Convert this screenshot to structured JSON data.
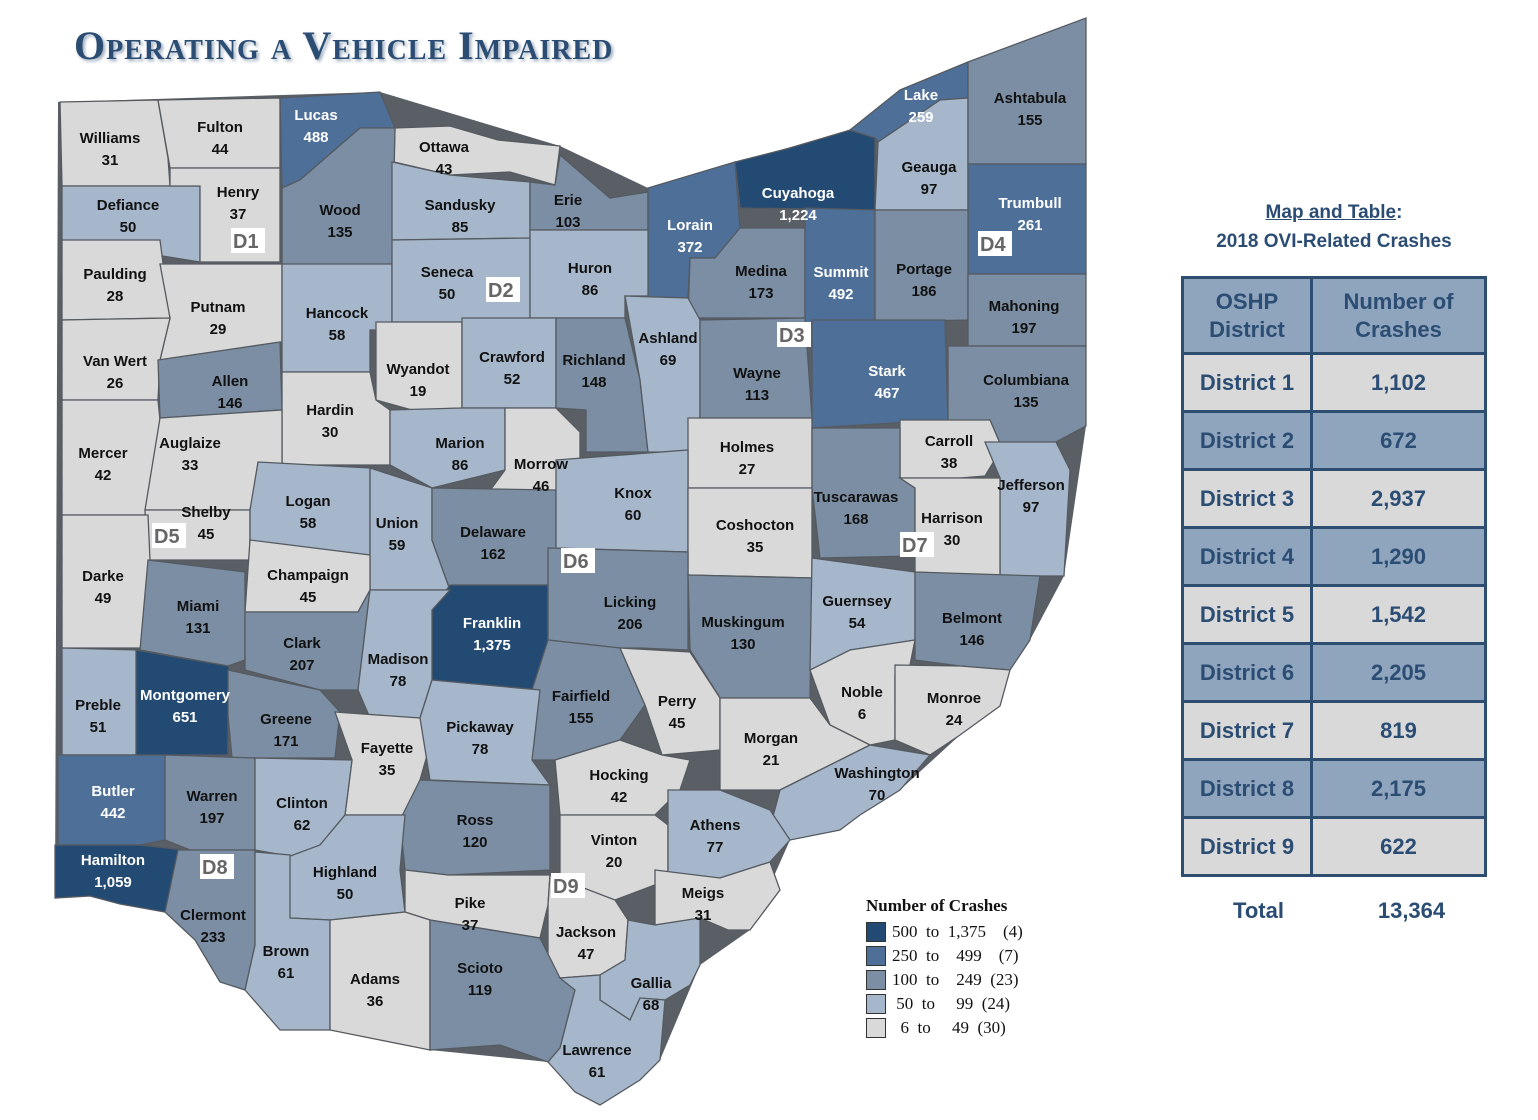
{
  "title": "Operating a Vehicle Impaired",
  "colors": {
    "bin1": "#234a72",
    "bin2": "#4e6f97",
    "bin3": "#7b8ea4",
    "bin4": "#a6b7cb",
    "bin5": "#d9d9d9"
  },
  "counties": [
    {
      "name": "Williams",
      "value": "31",
      "bin": 5
    },
    {
      "name": "Fulton",
      "value": "44",
      "bin": 5
    },
    {
      "name": "Lucas",
      "value": "488",
      "bin": 2
    },
    {
      "name": "Ottawa",
      "value": "43",
      "bin": 5
    },
    {
      "name": "Defiance",
      "value": "50",
      "bin": 4
    },
    {
      "name": "Henry",
      "value": "37",
      "bin": 5
    },
    {
      "name": "Wood",
      "value": "135",
      "bin": 3
    },
    {
      "name": "Sandusky",
      "value": "85",
      "bin": 4
    },
    {
      "name": "Erie",
      "value": "103",
      "bin": 3
    },
    {
      "name": "Lorain",
      "value": "372",
      "bin": 2
    },
    {
      "name": "Cuyahoga",
      "value": "1,224",
      "bin": 1
    },
    {
      "name": "Lake",
      "value": "259",
      "bin": 2
    },
    {
      "name": "Geauga",
      "value": "97",
      "bin": 4
    },
    {
      "name": "Ashtabula",
      "value": "155",
      "bin": 3
    },
    {
      "name": "Trumbull",
      "value": "261",
      "bin": 2
    },
    {
      "name": "Paulding",
      "value": "28",
      "bin": 5
    },
    {
      "name": "Putnam",
      "value": "29",
      "bin": 5
    },
    {
      "name": "Hancock",
      "value": "58",
      "bin": 4
    },
    {
      "name": "Seneca",
      "value": "50",
      "bin": 4
    },
    {
      "name": "Huron",
      "value": "86",
      "bin": 4
    },
    {
      "name": "Medina",
      "value": "173",
      "bin": 3
    },
    {
      "name": "Summit",
      "value": "492",
      "bin": 2
    },
    {
      "name": "Portage",
      "value": "186",
      "bin": 3
    },
    {
      "name": "Mahoning",
      "value": "197",
      "bin": 3
    },
    {
      "name": "Van Wert",
      "value": "26",
      "bin": 5
    },
    {
      "name": "Allen",
      "value": "146",
      "bin": 3
    },
    {
      "name": "Wyandot",
      "value": "19",
      "bin": 5
    },
    {
      "name": "Crawford",
      "value": "52",
      "bin": 4
    },
    {
      "name": "Richland",
      "value": "148",
      "bin": 3
    },
    {
      "name": "Ashland",
      "value": "69",
      "bin": 4
    },
    {
      "name": "Wayne",
      "value": "113",
      "bin": 3
    },
    {
      "name": "Stark",
      "value": "467",
      "bin": 2
    },
    {
      "name": "Columbiana",
      "value": "135",
      "bin": 3
    },
    {
      "name": "Hardin",
      "value": "30",
      "bin": 5
    },
    {
      "name": "Mercer",
      "value": "42",
      "bin": 5
    },
    {
      "name": "Auglaize",
      "value": "33",
      "bin": 5
    },
    {
      "name": "Marion",
      "value": "86",
      "bin": 4
    },
    {
      "name": "Morrow",
      "value": "46",
      "bin": 5
    },
    {
      "name": "Holmes",
      "value": "27",
      "bin": 5
    },
    {
      "name": "Carroll",
      "value": "38",
      "bin": 5
    },
    {
      "name": "Jefferson",
      "value": "97",
      "bin": 4
    },
    {
      "name": "Shelby",
      "value": "45",
      "bin": 5
    },
    {
      "name": "Logan",
      "value": "58",
      "bin": 4
    },
    {
      "name": "Union",
      "value": "59",
      "bin": 4
    },
    {
      "name": "Delaware",
      "value": "162",
      "bin": 3
    },
    {
      "name": "Knox",
      "value": "60",
      "bin": 4
    },
    {
      "name": "Coshocton",
      "value": "35",
      "bin": 5
    },
    {
      "name": "Tuscarawas",
      "value": "168",
      "bin": 3
    },
    {
      "name": "Harrison",
      "value": "30",
      "bin": 5
    },
    {
      "name": "Darke",
      "value": "49",
      "bin": 5
    },
    {
      "name": "Champaign",
      "value": "45",
      "bin": 5
    },
    {
      "name": "Miami",
      "value": "131",
      "bin": 3
    },
    {
      "name": "Franklin",
      "value": "1,375",
      "bin": 1
    },
    {
      "name": "Licking",
      "value": "206",
      "bin": 3
    },
    {
      "name": "Muskingum",
      "value": "130",
      "bin": 3
    },
    {
      "name": "Guernsey",
      "value": "54",
      "bin": 4
    },
    {
      "name": "Belmont",
      "value": "146",
      "bin": 3
    },
    {
      "name": "Clark",
      "value": "207",
      "bin": 3
    },
    {
      "name": "Madison",
      "value": "78",
      "bin": 4
    },
    {
      "name": "Preble",
      "value": "51",
      "bin": 4
    },
    {
      "name": "Montgomery",
      "value": "651",
      "bin": 1
    },
    {
      "name": "Greene",
      "value": "171",
      "bin": 3
    },
    {
      "name": "Fairfield",
      "value": "155",
      "bin": 3
    },
    {
      "name": "Perry",
      "value": "45",
      "bin": 5
    },
    {
      "name": "Noble",
      "value": "6",
      "bin": 5
    },
    {
      "name": "Monroe",
      "value": "24",
      "bin": 5
    },
    {
      "name": "Fayette",
      "value": "35",
      "bin": 5
    },
    {
      "name": "Pickaway",
      "value": "78",
      "bin": 4
    },
    {
      "name": "Morgan",
      "value": "21",
      "bin": 5
    },
    {
      "name": "Hocking",
      "value": "42",
      "bin": 5
    },
    {
      "name": "Washington",
      "value": "70",
      "bin": 4
    },
    {
      "name": "Butler",
      "value": "442",
      "bin": 2
    },
    {
      "name": "Warren",
      "value": "197",
      "bin": 3
    },
    {
      "name": "Clinton",
      "value": "62",
      "bin": 4
    },
    {
      "name": "Ross",
      "value": "120",
      "bin": 3
    },
    {
      "name": "Vinton",
      "value": "20",
      "bin": 5
    },
    {
      "name": "Athens",
      "value": "77",
      "bin": 4
    },
    {
      "name": "Hamilton",
      "value": "1,059",
      "bin": 1
    },
    {
      "name": "Highland",
      "value": "50",
      "bin": 4
    },
    {
      "name": "Clermont",
      "value": "233",
      "bin": 3
    },
    {
      "name": "Pike",
      "value": "37",
      "bin": 5
    },
    {
      "name": "Jackson",
      "value": "47",
      "bin": 5
    },
    {
      "name": "Meigs",
      "value": "31",
      "bin": 5
    },
    {
      "name": "Brown",
      "value": "61",
      "bin": 4
    },
    {
      "name": "Adams",
      "value": "36",
      "bin": 5
    },
    {
      "name": "Scioto",
      "value": "119",
      "bin": 3
    },
    {
      "name": "Gallia",
      "value": "68",
      "bin": 4
    },
    {
      "name": "Lawrence",
      "value": "61",
      "bin": 4
    }
  ],
  "district_labels": [
    "D1",
    "D2",
    "D3",
    "D4",
    "D5",
    "D6",
    "D7",
    "D8",
    "D9"
  ],
  "legend": {
    "title": "Number of Crashes",
    "items": [
      {
        "text": "500  to  1,375    (4)",
        "bin": 1
      },
      {
        "text": "250  to    499    (7)",
        "bin": 2
      },
      {
        "text": "100  to    249  (23)",
        "bin": 3
      },
      {
        "text": " 50  to     99  (24)",
        "bin": 4
      },
      {
        "text": "  6  to     49  (30)",
        "bin": 5
      }
    ]
  },
  "side": {
    "title_underlined": "Map and Table",
    "title_colon": ":",
    "subtitle": "2018 OVI-Related Crashes",
    "table": {
      "header": [
        "OSHP District",
        "Number of Crashes"
      ],
      "rows": [
        [
          "District 1",
          "1,102"
        ],
        [
          "District 2",
          "672"
        ],
        [
          "District 3",
          "2,937"
        ],
        [
          "District 4",
          "1,290"
        ],
        [
          "District 5",
          "1,542"
        ],
        [
          "District 6",
          "2,205"
        ],
        [
          "District 7",
          "819"
        ],
        [
          "District 8",
          "2,175"
        ],
        [
          "District 9",
          "622"
        ]
      ]
    },
    "total_label": "Total",
    "total_value": "13,364"
  }
}
